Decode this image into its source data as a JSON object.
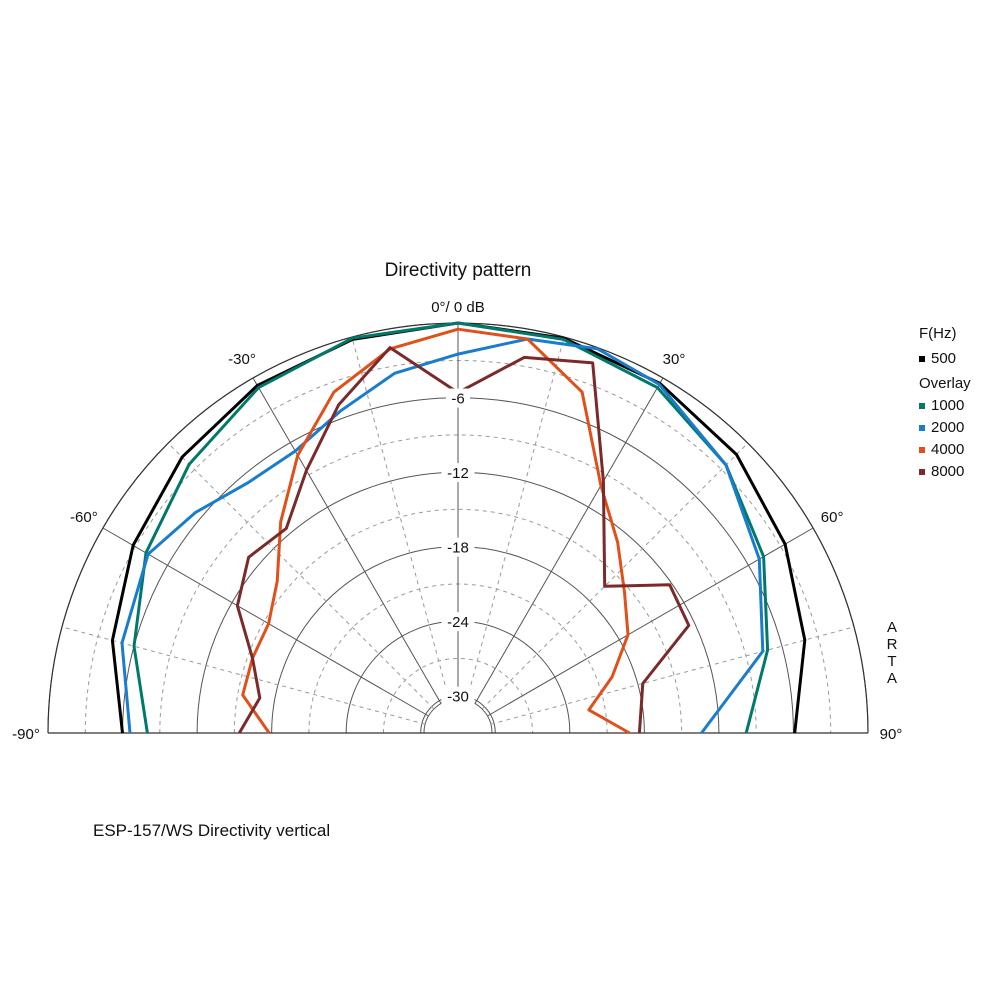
{
  "chart_data": {
    "type": "polar",
    "title": "Directivity pattern",
    "top_label": "0°/ 0 dB",
    "angle_labels": [
      {
        "angle": -90,
        "text": "-90°"
      },
      {
        "angle": -60,
        "text": "-60°"
      },
      {
        "angle": -30,
        "text": "-30°"
      },
      {
        "angle": 30,
        "text": "30°"
      },
      {
        "angle": 60,
        "text": "60°"
      },
      {
        "angle": 90,
        "text": "90°"
      }
    ],
    "radial_labels": [
      {
        "db": -6,
        "text": "-6"
      },
      {
        "db": -12,
        "text": "-12"
      },
      {
        "db": -18,
        "text": "-18"
      },
      {
        "db": -24,
        "text": "-24"
      },
      {
        "db": -30,
        "text": "-30"
      }
    ],
    "r_range_db": [
      -33,
      0
    ],
    "angle_range_deg": [
      -90,
      90
    ],
    "legend": {
      "header": "F(Hz)",
      "overlay_header": "Overlay"
    },
    "series": [
      {
        "name": "500",
        "color": "#000000",
        "points": [
          [
            -90,
            -6.0
          ],
          [
            -75,
            -4.2
          ],
          [
            -60,
            -2.8
          ],
          [
            -45,
            -1.6
          ],
          [
            -30,
            -0.7
          ],
          [
            -15,
            -0.2
          ],
          [
            0,
            0
          ],
          [
            15,
            -0.1
          ],
          [
            30,
            -0.5
          ],
          [
            45,
            -1.3
          ],
          [
            60,
            -2.6
          ],
          [
            75,
            -4.1
          ],
          [
            90,
            -5.9
          ]
        ]
      },
      {
        "name": "1000",
        "color": "#00796b",
        "points": [
          [
            -90,
            -8.0
          ],
          [
            -75,
            -6.0
          ],
          [
            -60,
            -4.0
          ],
          [
            -45,
            -2.4
          ],
          [
            -30,
            -0.9
          ],
          [
            -15,
            -0.1
          ],
          [
            0,
            0
          ],
          [
            15,
            -0.2
          ],
          [
            30,
            -0.9
          ],
          [
            45,
            -2.5
          ],
          [
            60,
            -4.6
          ],
          [
            75,
            -7.2
          ],
          [
            90,
            -9.8
          ]
        ]
      },
      {
        "name": "2000",
        "color": "#1a7ccc",
        "points": [
          [
            -90,
            -6.6
          ],
          [
            -75,
            -5.0
          ],
          [
            -60,
            -4.2
          ],
          [
            -50,
            -5.4
          ],
          [
            -40,
            -6.7
          ],
          [
            -30,
            -6.8
          ],
          [
            -20,
            -5.4
          ],
          [
            -10,
            -3.6
          ],
          [
            0,
            -2.5
          ],
          [
            10,
            -0.8
          ],
          [
            20,
            -0.1
          ],
          [
            30,
            -0.6
          ],
          [
            45,
            -2.5
          ],
          [
            60,
            -5.0
          ],
          [
            75,
            -7.6
          ],
          [
            90,
            -13.4
          ]
        ]
      },
      {
        "name": "4000",
        "color": "#e0501a",
        "points": [
          [
            -90,
            -17.8
          ],
          [
            -80,
            -15.4
          ],
          [
            -70,
            -15.4
          ],
          [
            -60,
            -15.4
          ],
          [
            -50,
            -14.0
          ],
          [
            -40,
            -10.8
          ],
          [
            -30,
            -7.2
          ],
          [
            -20,
            -3.8
          ],
          [
            -10,
            -1.6
          ],
          [
            0,
            -0.5
          ],
          [
            10,
            -0.8
          ],
          [
            20,
            -3.8
          ],
          [
            30,
            -10.0
          ],
          [
            40,
            -13.0
          ],
          [
            50,
            -15.5
          ],
          [
            60,
            -17.2
          ],
          [
            70,
            -19.8
          ],
          [
            80,
            -22.3
          ],
          [
            90,
            -19.2
          ]
        ]
      },
      {
        "name": "8000",
        "color": "#7b2a2a",
        "points": [
          [
            -90,
            -15.4
          ],
          [
            -80,
            -16.8
          ],
          [
            -70,
            -15.4
          ],
          [
            -60,
            -12.5
          ],
          [
            -50,
            -11.0
          ],
          [
            -40,
            -11.5
          ],
          [
            -30,
            -8.6
          ],
          [
            -20,
            -4.9
          ],
          [
            -10,
            -1.5
          ],
          [
            0,
            -5.6
          ],
          [
            10,
            -2.3
          ],
          [
            20,
            -1.3
          ],
          [
            30,
            -9.6
          ],
          [
            45,
            -16.3
          ],
          [
            55,
            -12.2
          ],
          [
            65,
            -12.5
          ],
          [
            75,
            -17.6
          ],
          [
            90,
            -18.4
          ]
        ]
      }
    ],
    "brand_vertical": "ARTA",
    "caption": "ESP-157/WS  Directivity vertical"
  }
}
